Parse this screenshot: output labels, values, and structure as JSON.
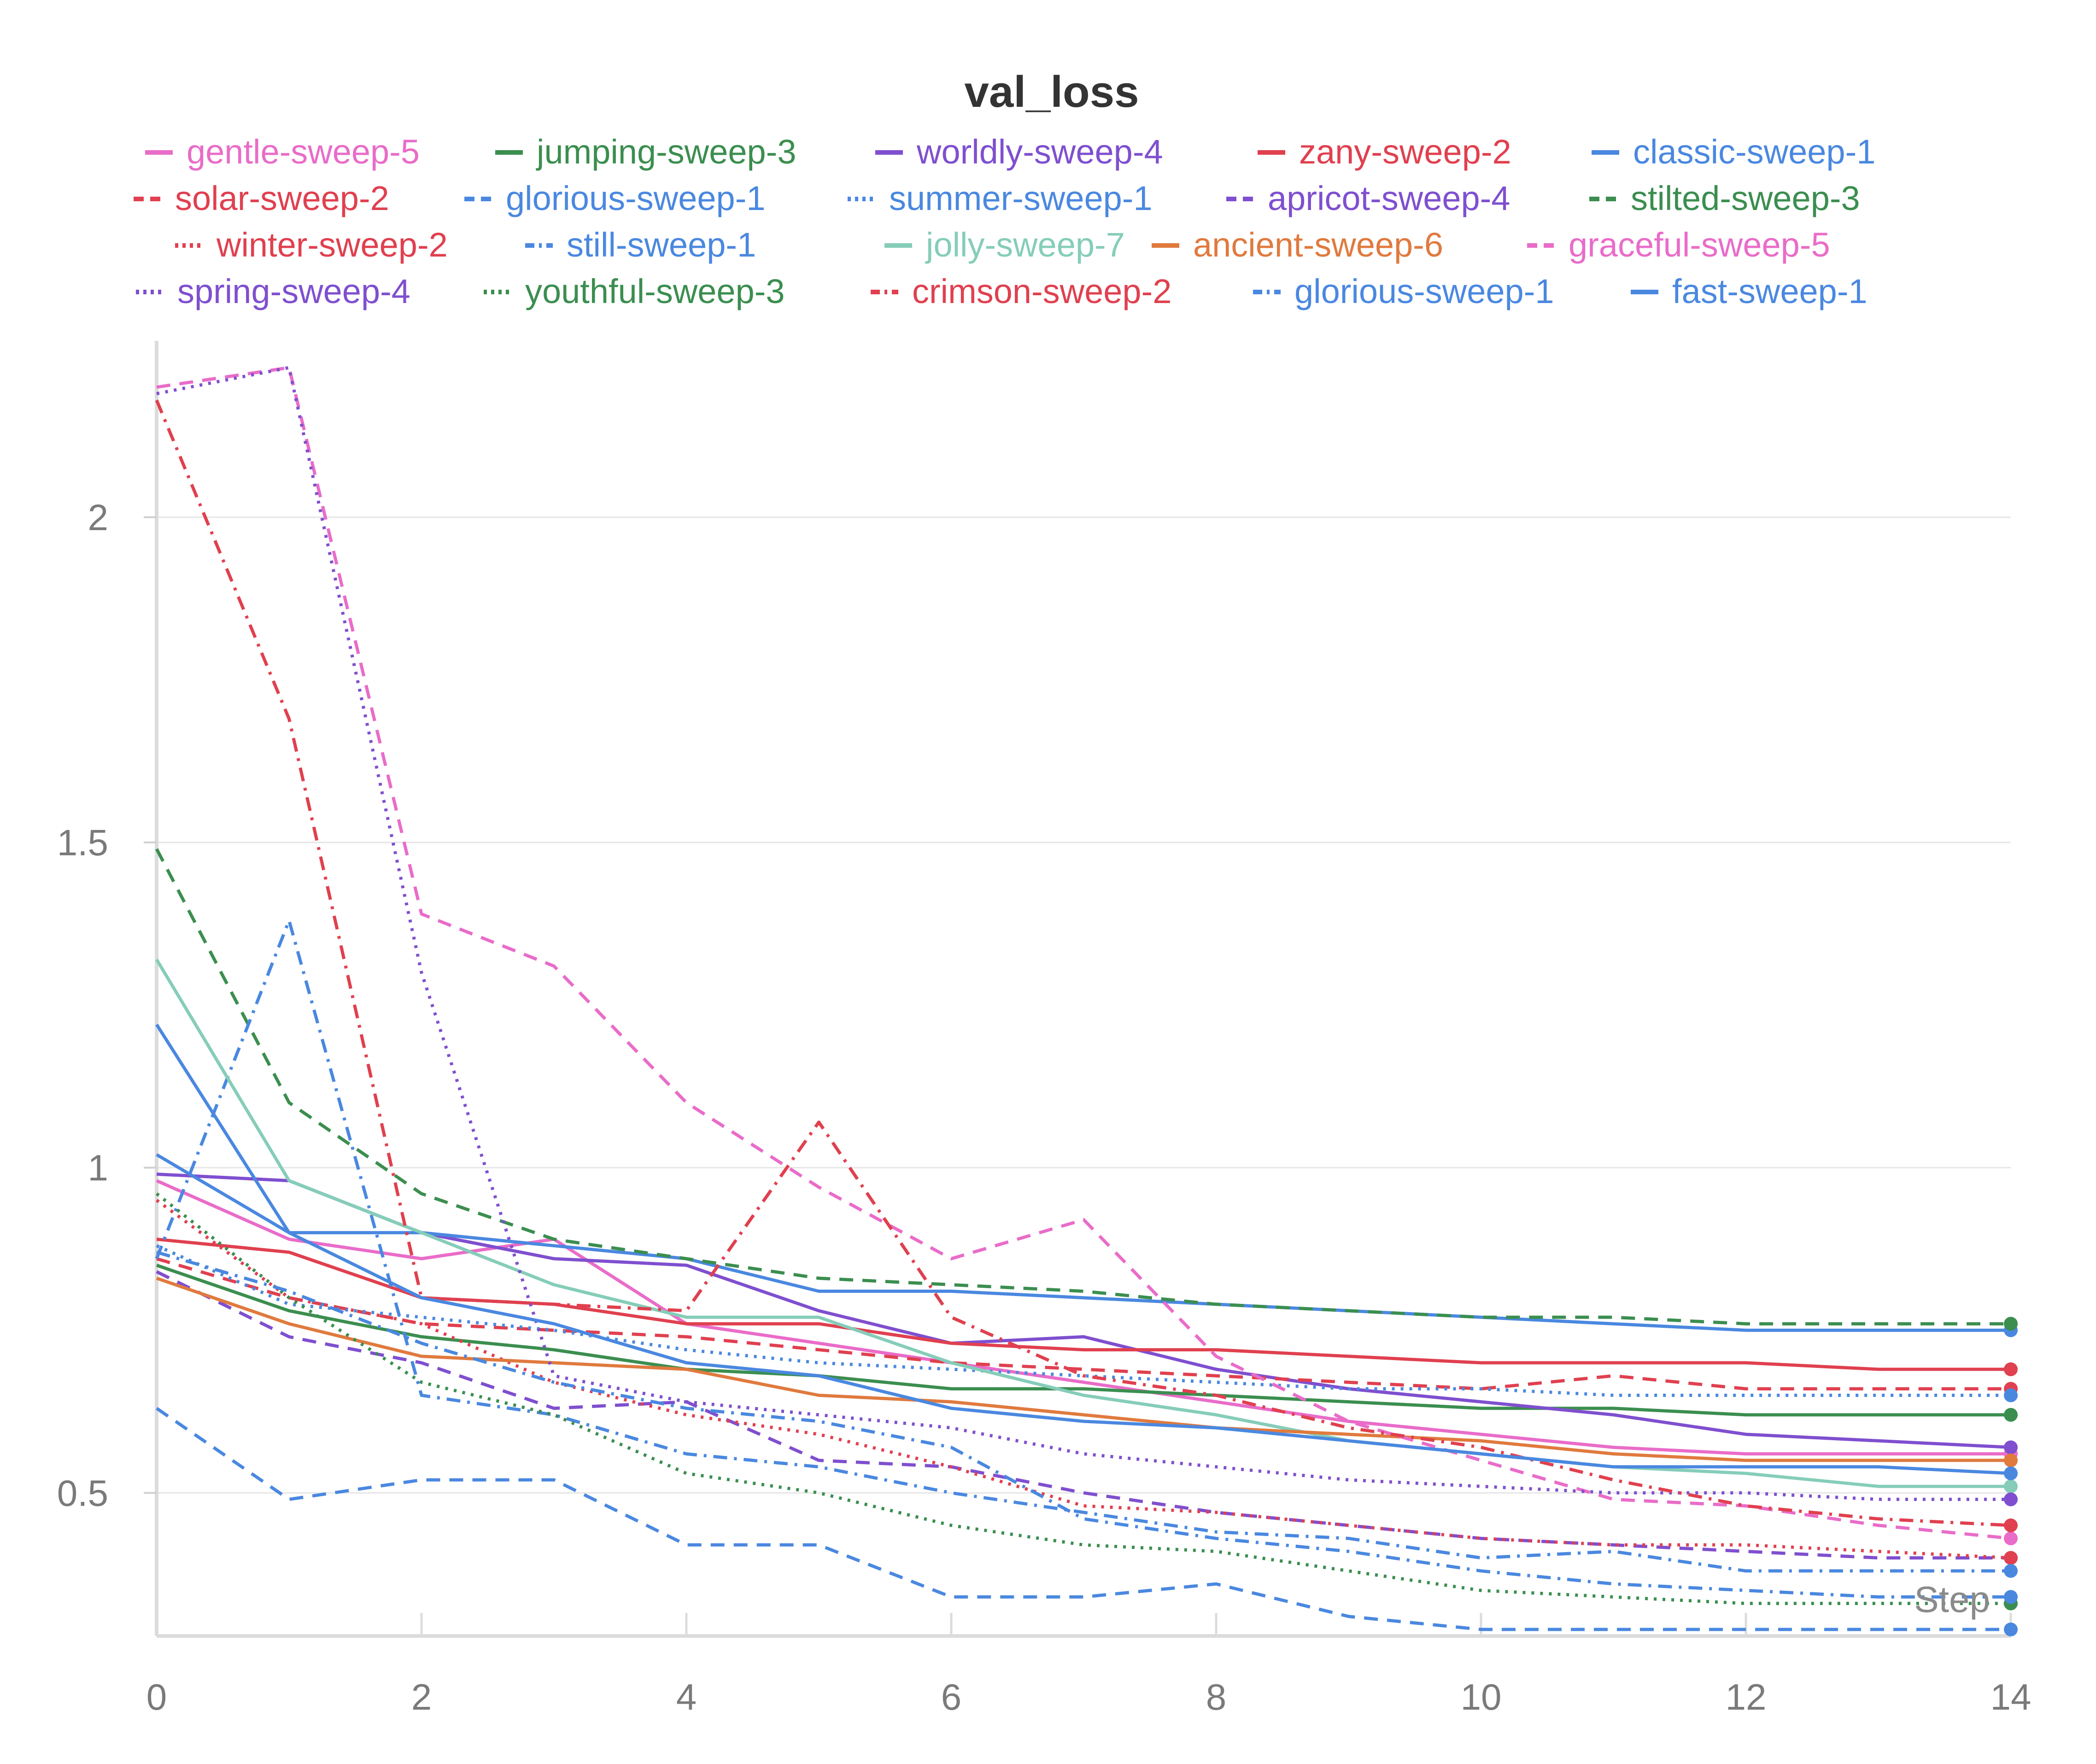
{
  "chart_data": {
    "type": "line",
    "title": "val_loss",
    "xlabel": "Step",
    "ylabel": "",
    "xlim": [
      0,
      14
    ],
    "ylim": [
      0.28,
      2.25
    ],
    "x_ticks": [
      0,
      2,
      4,
      6,
      8,
      10,
      12,
      14
    ],
    "y_ticks": [
      0.5,
      1,
      1.5,
      2
    ],
    "x_tick_labels": [
      "0",
      "2",
      "4",
      "6",
      "8",
      "10",
      "12",
      "14"
    ],
    "y_tick_labels": [
      "0.5",
      "1",
      "1.5",
      "2"
    ],
    "grid": true,
    "legend_position": "top",
    "x": [
      0,
      1,
      2,
      3,
      4,
      5,
      6,
      7,
      8,
      9,
      10,
      11,
      12,
      13,
      14
    ],
    "series": [
      {
        "name": "gentle-sweep-5",
        "color": "#e96cc9",
        "style": "solid",
        "values": [
          0.98,
          0.89,
          0.86,
          0.89,
          0.76,
          0.73,
          0.7,
          0.67,
          0.64,
          0.61,
          0.59,
          0.57,
          0.56,
          0.56,
          0.56
        ]
      },
      {
        "name": "jumping-sweep-3",
        "color": "#3b8e4f",
        "style": "solid",
        "values": [
          0.85,
          0.78,
          0.74,
          0.72,
          0.69,
          0.68,
          0.66,
          0.66,
          0.65,
          0.64,
          0.63,
          0.63,
          0.62,
          0.62,
          0.62
        ]
      },
      {
        "name": "worldly-sweep-4",
        "color": "#7f4fcf",
        "style": "solid",
        "values": [
          0.99,
          0.98,
          0.9,
          0.86,
          0.85,
          0.78,
          0.73,
          0.74,
          0.69,
          0.66,
          0.64,
          0.62,
          0.59,
          0.58,
          0.57
        ]
      },
      {
        "name": "zany-sweep-2",
        "color": "#e0404f",
        "style": "solid",
        "values": [
          0.89,
          0.87,
          0.8,
          0.79,
          0.76,
          0.76,
          0.73,
          0.72,
          0.72,
          0.71,
          0.7,
          0.7,
          0.7,
          0.69,
          0.69
        ]
      },
      {
        "name": "classic-sweep-1",
        "color": "#4a88e0",
        "style": "solid",
        "values": [
          1.02,
          0.9,
          0.9,
          0.88,
          0.86,
          0.81,
          0.81,
          0.8,
          0.79,
          0.78,
          0.77,
          0.76,
          0.75,
          0.75,
          0.75
        ]
      },
      {
        "name": "solar-sweep-2",
        "color": "#e0404f",
        "style": "dashed",
        "values": [
          0.86,
          0.8,
          0.76,
          0.75,
          0.74,
          0.72,
          0.7,
          0.69,
          0.68,
          0.67,
          0.66,
          0.68,
          0.66,
          0.66,
          0.66
        ]
      },
      {
        "name": "glorious-sweep-1",
        "color": "#4a88e0",
        "style": "dashed",
        "values": [
          0.63,
          0.49,
          0.52,
          0.52,
          0.42,
          0.42,
          0.34,
          0.34,
          0.36,
          0.31,
          0.29,
          0.29,
          0.29,
          0.29,
          0.29
        ]
      },
      {
        "name": "summer-sweep-1",
        "color": "#4a88e0",
        "style": "dotted",
        "values": [
          0.88,
          0.79,
          0.77,
          0.75,
          0.72,
          0.7,
          0.69,
          0.68,
          0.67,
          0.66,
          0.66,
          0.65,
          0.65,
          0.65,
          0.65
        ]
      },
      {
        "name": "apricot-sweep-4",
        "color": "#7f4fcf",
        "style": "dashed",
        "values": [
          0.84,
          0.74,
          0.7,
          0.63,
          0.64,
          0.55,
          0.54,
          0.5,
          0.47,
          0.45,
          0.43,
          0.42,
          0.41,
          0.4,
          0.4
        ]
      },
      {
        "name": "stilted-sweep-3",
        "color": "#3b8e4f",
        "style": "dashed",
        "values": [
          1.49,
          1.1,
          0.96,
          0.89,
          0.86,
          0.83,
          0.82,
          0.81,
          0.79,
          0.78,
          0.77,
          0.77,
          0.76,
          0.76,
          0.76
        ]
      },
      {
        "name": "winter-sweep-2",
        "color": "#e0404f",
        "style": "dotted",
        "values": [
          0.95,
          0.8,
          0.76,
          0.67,
          0.62,
          0.59,
          0.54,
          0.48,
          0.47,
          0.45,
          0.43,
          0.42,
          0.42,
          0.41,
          0.4
        ]
      },
      {
        "name": "still-sweep-1",
        "color": "#4a88e0",
        "style": "dashdot",
        "values": [
          0.86,
          1.38,
          0.65,
          0.62,
          0.56,
          0.54,
          0.5,
          0.47,
          0.44,
          0.43,
          0.4,
          0.41,
          0.38,
          0.38,
          0.38
        ]
      },
      {
        "name": "jolly-sweep-7",
        "color": "#85cdb9",
        "style": "solid",
        "values": [
          1.32,
          0.98,
          0.9,
          0.82,
          0.77,
          0.77,
          0.7,
          0.65,
          0.62,
          0.58,
          0.56,
          0.54,
          0.53,
          0.51,
          0.51
        ]
      },
      {
        "name": "ancient-sweep-6",
        "color": "#e07a3e",
        "style": "solid",
        "values": [
          0.83,
          0.76,
          0.71,
          0.7,
          0.69,
          0.65,
          0.64,
          0.62,
          0.6,
          0.59,
          0.58,
          0.56,
          0.55,
          0.55,
          0.55
        ]
      },
      {
        "name": "graceful-sweep-5",
        "color": "#e96cc9",
        "style": "dashed",
        "values": [
          2.2,
          2.23,
          1.39,
          1.31,
          1.1,
          0.97,
          0.86,
          0.92,
          0.71,
          0.61,
          0.55,
          0.49,
          0.48,
          0.45,
          0.43
        ]
      },
      {
        "name": "spring-sweep-4",
        "color": "#7f4fcf",
        "style": "dotted",
        "values": [
          2.19,
          2.23,
          1.3,
          0.68,
          0.64,
          0.62,
          0.6,
          0.56,
          0.54,
          0.52,
          0.51,
          0.5,
          0.5,
          0.49,
          0.49
        ]
      },
      {
        "name": "youthful-sweep-3",
        "color": "#3b8e4f",
        "style": "dotted",
        "values": [
          0.96,
          0.8,
          0.67,
          0.62,
          0.53,
          0.5,
          0.45,
          0.42,
          0.41,
          0.38,
          0.35,
          0.34,
          0.33,
          0.33,
          0.33
        ]
      },
      {
        "name": "crimson-sweep-2",
        "color": "#e0404f",
        "style": "dashdot",
        "values": [
          2.18,
          1.69,
          0.8,
          0.79,
          0.78,
          1.07,
          0.77,
          0.68,
          0.65,
          0.6,
          0.57,
          0.52,
          0.48,
          0.46,
          0.45
        ]
      },
      {
        "name": "glorious-sweep-1",
        "color": "#4a88e0",
        "style": "dashdot",
        "values": [
          0.87,
          0.81,
          0.73,
          0.67,
          0.63,
          0.61,
          0.57,
          0.46,
          0.43,
          0.41,
          0.38,
          0.36,
          0.35,
          0.34,
          0.34
        ]
      },
      {
        "name": "fast-sweep-1",
        "color": "#4a88e0",
        "style": "solid",
        "values": [
          1.22,
          0.9,
          0.8,
          0.76,
          0.7,
          0.68,
          0.63,
          0.61,
          0.6,
          0.58,
          0.56,
          0.54,
          0.54,
          0.54,
          0.53
        ]
      }
    ]
  }
}
